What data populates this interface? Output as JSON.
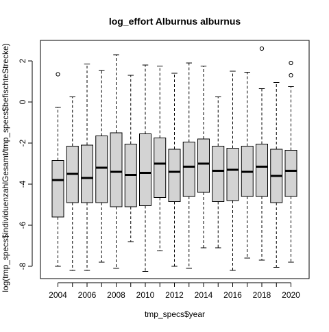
{
  "chart_data": {
    "type": "boxplot",
    "title": "log_effort Alburnus alburnus",
    "xlabel": "tmp_specs$year",
    "ylabel": "log(tmp_specs$individuenzahlGesamt/tmp_specs$befischteStrecke)",
    "ylim": [
      -8.6,
      3.0
    ],
    "y_ticks": [
      -8,
      -6,
      -4,
      -2,
      0,
      2
    ],
    "x_tick_labels": [
      "2004",
      "2006",
      "2008",
      "2010",
      "2012",
      "2014",
      "2016",
      "2018",
      "2020"
    ],
    "box_fill": "#d3d3d3",
    "grid": false,
    "categories": [
      "2004",
      "2005",
      "2006",
      "2007",
      "2008",
      "2009",
      "2010",
      "2011",
      "2012",
      "2013",
      "2014",
      "2015",
      "2016",
      "2017",
      "2018",
      "2019",
      "2020"
    ],
    "boxes": [
      {
        "year": "2004",
        "whisker_low": -8.0,
        "q1": -5.6,
        "median": -3.8,
        "q3": -2.85,
        "whisker_high": -0.25,
        "outliers": [
          1.35
        ]
      },
      {
        "year": "2005",
        "whisker_low": -8.2,
        "q1": -4.9,
        "median": -3.5,
        "q3": -2.15,
        "whisker_high": 0.25,
        "outliers": []
      },
      {
        "year": "2006",
        "whisker_low": -8.2,
        "q1": -4.9,
        "median": -3.7,
        "q3": -2.1,
        "whisker_high": 1.85,
        "outliers": []
      },
      {
        "year": "2007",
        "whisker_low": -7.8,
        "q1": -4.9,
        "median": -3.2,
        "q3": -1.65,
        "whisker_high": 1.55,
        "outliers": []
      },
      {
        "year": "2008",
        "whisker_low": -8.1,
        "q1": -5.1,
        "median": -3.4,
        "q3": -1.5,
        "whisker_high": 2.3,
        "outliers": []
      },
      {
        "year": "2009",
        "whisker_low": -6.8,
        "q1": -5.1,
        "median": -3.55,
        "q3": -2.05,
        "whisker_high": 1.3,
        "outliers": []
      },
      {
        "year": "2010",
        "whisker_low": -8.25,
        "q1": -5.05,
        "median": -3.45,
        "q3": -1.55,
        "whisker_high": 1.8,
        "outliers": []
      },
      {
        "year": "2011",
        "whisker_low": -7.25,
        "q1": -4.65,
        "median": -3.0,
        "q3": -1.75,
        "whisker_high": 1.75,
        "outliers": []
      },
      {
        "year": "2012",
        "whisker_low": -8.0,
        "q1": -4.85,
        "median": -3.4,
        "q3": -2.3,
        "whisker_high": 1.4,
        "outliers": []
      },
      {
        "year": "2013",
        "whisker_low": -8.1,
        "q1": -4.6,
        "median": -3.15,
        "q3": -1.95,
        "whisker_high": 1.9,
        "outliers": []
      },
      {
        "year": "2014",
        "whisker_low": -7.1,
        "q1": -4.4,
        "median": -3.0,
        "q3": -1.8,
        "whisker_high": 1.75,
        "outliers": []
      },
      {
        "year": "2015",
        "whisker_low": -7.1,
        "q1": -4.85,
        "median": -3.35,
        "q3": -2.15,
        "whisker_high": 0.25,
        "outliers": []
      },
      {
        "year": "2016",
        "whisker_low": -8.2,
        "q1": -4.8,
        "median": -3.3,
        "q3": -2.25,
        "whisker_high": 1.5,
        "outliers": []
      },
      {
        "year": "2017",
        "whisker_low": -7.6,
        "q1": -4.6,
        "median": -3.4,
        "q3": -2.15,
        "whisker_high": 1.45,
        "outliers": []
      },
      {
        "year": "2018",
        "whisker_low": -7.7,
        "q1": -4.6,
        "median": -3.15,
        "q3": -2.05,
        "whisker_high": 0.65,
        "outliers": [
          2.6
        ]
      },
      {
        "year": "2019",
        "whisker_low": -8.05,
        "q1": -4.9,
        "median": -3.6,
        "q3": -2.3,
        "whisker_high": 0.95,
        "outliers": []
      },
      {
        "year": "2020",
        "whisker_low": -7.8,
        "q1": -4.6,
        "median": -3.35,
        "q3": -2.35,
        "whisker_high": 0.75,
        "outliers": [
          1.3,
          1.9
        ]
      }
    ]
  }
}
